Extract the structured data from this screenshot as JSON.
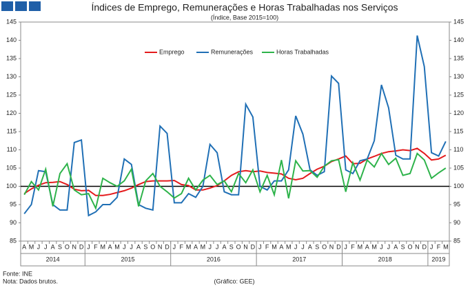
{
  "header_icons": 3,
  "chart_data": {
    "type": "line",
    "title": "Índices de Emprego, Remunerações e Horas Trabalhadas nos Serviços",
    "subtitle": "(Índice, Base 2015=100)",
    "categories_by_year": [
      {
        "year": "2014",
        "months": [
          "A",
          "M",
          "J",
          "J",
          "A",
          "S",
          "O",
          "N",
          "D"
        ]
      },
      {
        "year": "2015",
        "months": [
          "J",
          "F",
          "M",
          "A",
          "M",
          "J",
          "J",
          "A",
          "S",
          "O",
          "N",
          "D"
        ]
      },
      {
        "year": "2016",
        "months": [
          "J",
          "F",
          "M",
          "A",
          "M",
          "J",
          "J",
          "A",
          "S",
          "O",
          "N",
          "D"
        ]
      },
      {
        "year": "2017",
        "months": [
          "J",
          "F",
          "M",
          "A",
          "M",
          "J",
          "J",
          "A",
          "S",
          "O",
          "N",
          "D"
        ]
      },
      {
        "year": "2018",
        "months": [
          "J",
          "F",
          "M",
          "A",
          "M",
          "J",
          "J",
          "A",
          "S",
          "O",
          "N",
          "D"
        ]
      },
      {
        "year": "2019",
        "months": [
          "J",
          "F",
          "M"
        ]
      }
    ],
    "series": [
      {
        "name": "Emprego",
        "color": "#e41a1c",
        "values": [
          98,
          99.3,
          100.3,
          101,
          101.1,
          101.3,
          100.5,
          99.2,
          98.8,
          98.9,
          97.5,
          97.5,
          97.8,
          98.3,
          98.8,
          99.5,
          100.5,
          101.3,
          101.5,
          101.5,
          101.5,
          101.6,
          100.5,
          100.2,
          99,
          99,
          99.5,
          100.2,
          101.5,
          103,
          104,
          104.3,
          104,
          104.2,
          103.8,
          103.6,
          103.4,
          102.2,
          101.8,
          102.2,
          103.5,
          104.7,
          105.5,
          106.8,
          107.5,
          108.3,
          106.2,
          106.3,
          107.5,
          108.2,
          109,
          109.5,
          109.7,
          110,
          109.8,
          110.4,
          109,
          107.2,
          107.5,
          108.5
        ]
      },
      {
        "name": "Remunerações",
        "color": "#1f6fb5",
        "values": [
          92.5,
          95,
          104.3,
          104,
          95,
          93.5,
          93.5,
          112,
          112.7,
          92,
          93,
          95,
          95,
          97,
          107.5,
          106,
          95,
          94,
          93.5,
          116.5,
          114.5,
          95.5,
          95.5,
          98,
          97,
          100,
          111.5,
          109.2,
          98.5,
          97.7,
          97.7,
          122.5,
          119,
          100,
          99,
          101.5,
          101.5,
          104.5,
          119.3,
          114.3,
          104.5,
          103,
          104,
          130.2,
          128.2,
          104.5,
          103.5,
          107,
          107.5,
          112.5,
          127.8,
          121.5,
          108.5,
          107.5,
          107.5,
          141.3,
          132.8,
          109.2,
          108.3,
          112.3
        ]
      },
      {
        "name": "Horas Trabalhadas",
        "color": "#2db34a",
        "values": [
          97.7,
          101.3,
          99,
          104.7,
          94.5,
          103.5,
          106.2,
          99,
          97.7,
          98,
          94,
          102.2,
          101,
          100,
          101.5,
          104.7,
          94.5,
          101.5,
          103.5,
          100,
          98.5,
          96.8,
          98,
          102.2,
          99,
          101.7,
          103,
          100.5,
          101.5,
          98.5,
          103.5,
          101,
          104.5,
          98.5,
          103,
          97.7,
          107.2,
          96.7,
          107,
          104.2,
          104.3,
          102.5,
          105.5,
          107,
          107.3,
          98.5,
          106.5,
          101.7,
          107.2,
          105.3,
          109,
          106,
          107.7,
          103,
          103.5,
          109,
          107.2,
          102.2,
          103.7,
          105
        ]
      }
    ],
    "reference_line": 100,
    "ylim": [
      85,
      145
    ],
    "yticks": [
      85,
      90,
      95,
      100,
      105,
      110,
      115,
      120,
      125,
      130,
      135,
      140,
      145
    ],
    "y2lim": [
      85,
      145
    ],
    "y2ticks": [
      85,
      90,
      95,
      100,
      105,
      110,
      115,
      120,
      125,
      130,
      135,
      140,
      145
    ],
    "legend": "top",
    "footnotes": [
      "Fonte: INE",
      "Nota: Dados brutos."
    ],
    "credit": "(Gráfico: GEE)"
  }
}
